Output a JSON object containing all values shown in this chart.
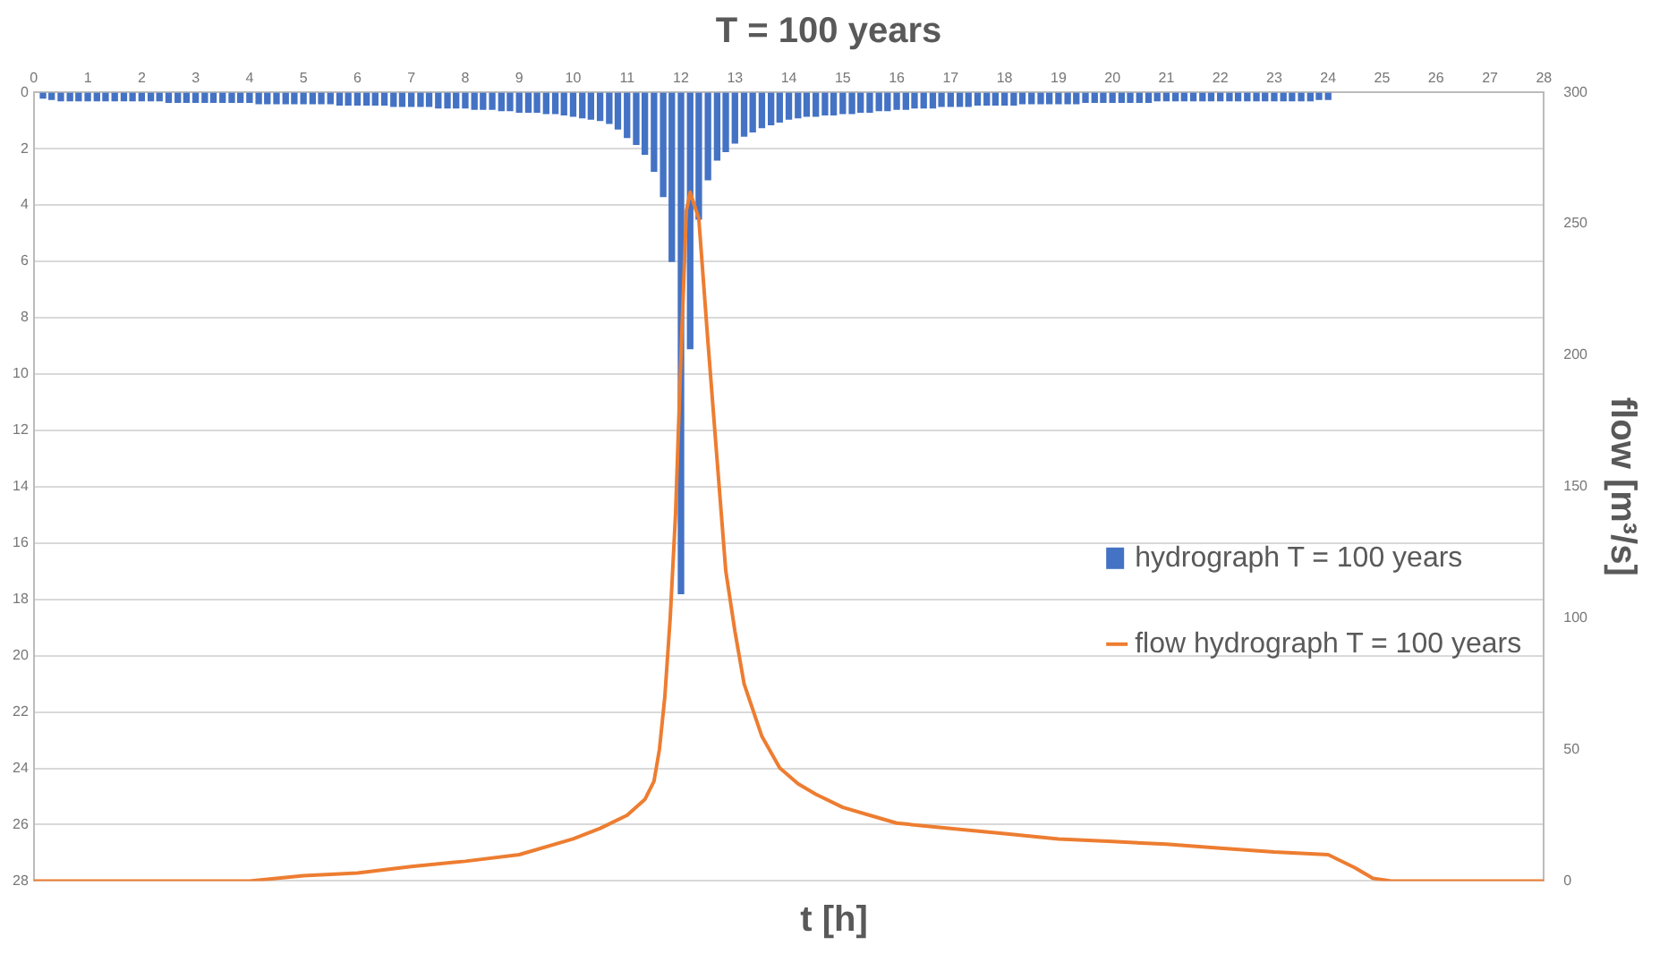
{
  "chart_data": {
    "type": "bar",
    "title": "T = 100 years",
    "xlabel": "t [h]",
    "y2label": "flow [m³/s]",
    "xlim": [
      0,
      28
    ],
    "xticks": [
      0,
      1,
      2,
      3,
      4,
      5,
      6,
      7,
      8,
      9,
      10,
      11,
      12,
      13,
      14,
      15,
      16,
      17,
      18,
      19,
      20,
      21,
      22,
      23,
      24,
      25,
      26,
      27,
      28
    ],
    "ylim": [
      28,
      0
    ],
    "yticks": [
      0,
      2,
      4,
      6,
      8,
      10,
      12,
      14,
      16,
      18,
      20,
      22,
      24,
      26,
      28
    ],
    "y2lim": [
      0,
      300
    ],
    "y2ticks": [
      0,
      50,
      100,
      150,
      200,
      250,
      300
    ],
    "grid": "y",
    "legend": "right",
    "series": [
      {
        "name": "hydrograph T = 100 years",
        "color": "#4472c4",
        "x": [
          0.17,
          0.33,
          0.5,
          0.67,
          0.83,
          1,
          1.17,
          1.33,
          1.5,
          1.67,
          1.83,
          2,
          2.17,
          2.33,
          2.5,
          2.67,
          2.83,
          3,
          3.17,
          3.33,
          3.5,
          3.67,
          3.83,
          4,
          4.17,
          4.33,
          4.5,
          4.67,
          4.83,
          5,
          5.17,
          5.33,
          5.5,
          5.67,
          5.83,
          6,
          6.17,
          6.33,
          6.5,
          6.67,
          6.83,
          7,
          7.17,
          7.33,
          7.5,
          7.67,
          7.83,
          8,
          8.17,
          8.33,
          8.5,
          8.67,
          8.83,
          9,
          9.17,
          9.33,
          9.5,
          9.67,
          9.83,
          10,
          10.17,
          10.33,
          10.5,
          10.67,
          10.83,
          11,
          11.17,
          11.33,
          11.5,
          11.67,
          11.83,
          12,
          12.17,
          12.33,
          12.5,
          12.67,
          12.83,
          13,
          13.17,
          13.33,
          13.5,
          13.67,
          13.83,
          14,
          14.17,
          14.33,
          14.5,
          14.67,
          14.83,
          15,
          15.17,
          15.33,
          15.5,
          15.67,
          15.83,
          16,
          16.17,
          16.33,
          16.5,
          16.67,
          16.83,
          17,
          17.17,
          17.33,
          17.5,
          17.67,
          17.83,
          18,
          18.17,
          18.33,
          18.5,
          18.67,
          18.83,
          19,
          19.17,
          19.33,
          19.5,
          19.67,
          19.83,
          20,
          20.17,
          20.33,
          20.5,
          20.67,
          20.83,
          21,
          21.17,
          21.33,
          21.5,
          21.67,
          21.83,
          22,
          22.17,
          22.33,
          22.5,
          22.67,
          22.83,
          23,
          23.17,
          23.33,
          23.5,
          23.67,
          23.83,
          24
        ],
        "values": [
          0.2,
          0.25,
          0.3,
          0.3,
          0.3,
          0.3,
          0.3,
          0.3,
          0.3,
          0.3,
          0.3,
          0.3,
          0.3,
          0.3,
          0.35,
          0.35,
          0.35,
          0.35,
          0.35,
          0.35,
          0.35,
          0.35,
          0.35,
          0.35,
          0.4,
          0.4,
          0.4,
          0.4,
          0.4,
          0.4,
          0.4,
          0.4,
          0.4,
          0.45,
          0.45,
          0.45,
          0.45,
          0.45,
          0.45,
          0.5,
          0.5,
          0.5,
          0.5,
          0.5,
          0.55,
          0.55,
          0.55,
          0.55,
          0.6,
          0.6,
          0.6,
          0.65,
          0.65,
          0.7,
          0.7,
          0.7,
          0.75,
          0.75,
          0.8,
          0.85,
          0.9,
          0.95,
          1,
          1.1,
          1.3,
          1.6,
          1.85,
          2.2,
          2.8,
          3.7,
          6,
          17.8,
          9.1,
          4.5,
          3.1,
          2.4,
          2.1,
          1.8,
          1.55,
          1.4,
          1.25,
          1.15,
          1.05,
          0.95,
          0.9,
          0.85,
          0.85,
          0.8,
          0.8,
          0.75,
          0.75,
          0.7,
          0.7,
          0.65,
          0.65,
          0.6,
          0.6,
          0.55,
          0.55,
          0.55,
          0.5,
          0.5,
          0.5,
          0.5,
          0.45,
          0.45,
          0.45,
          0.45,
          0.45,
          0.4,
          0.4,
          0.4,
          0.4,
          0.4,
          0.4,
          0.4,
          0.35,
          0.35,
          0.35,
          0.35,
          0.35,
          0.35,
          0.35,
          0.35,
          0.3,
          0.3,
          0.3,
          0.3,
          0.3,
          0.3,
          0.3,
          0.3,
          0.3,
          0.3,
          0.3,
          0.3,
          0.3,
          0.3,
          0.3,
          0.3,
          0.3,
          0.3,
          0.25,
          0.25
        ]
      },
      {
        "name": "flow hydrograph T = 100 years",
        "type": "line",
        "axis": "y2",
        "color": "#ed7d31",
        "marker": "none",
        "x": [
          0,
          4,
          5,
          6,
          7,
          8,
          9,
          10,
          10.5,
          11,
          11.33,
          11.5,
          11.6,
          11.7,
          11.8,
          11.9,
          12,
          12.1,
          12.17,
          12.33,
          12.5,
          12.67,
          12.83,
          13,
          13.17,
          13.5,
          13.83,
          14.17,
          14.5,
          15,
          15.5,
          16,
          17,
          18,
          19,
          20,
          21,
          22,
          23,
          24,
          24.5,
          24.83,
          25.17,
          28
        ],
        "values": [
          0,
          0,
          2,
          3,
          5.5,
          7.5,
          10,
          16,
          20,
          25,
          31,
          38,
          50,
          70,
          100,
          140,
          200,
          255,
          262,
          252,
          205,
          160,
          118,
          95,
          75,
          55,
          43,
          37,
          33,
          28,
          25,
          22,
          20,
          18,
          16,
          15,
          14,
          12.5,
          11,
          10,
          5,
          1,
          0,
          0
        ]
      }
    ]
  }
}
